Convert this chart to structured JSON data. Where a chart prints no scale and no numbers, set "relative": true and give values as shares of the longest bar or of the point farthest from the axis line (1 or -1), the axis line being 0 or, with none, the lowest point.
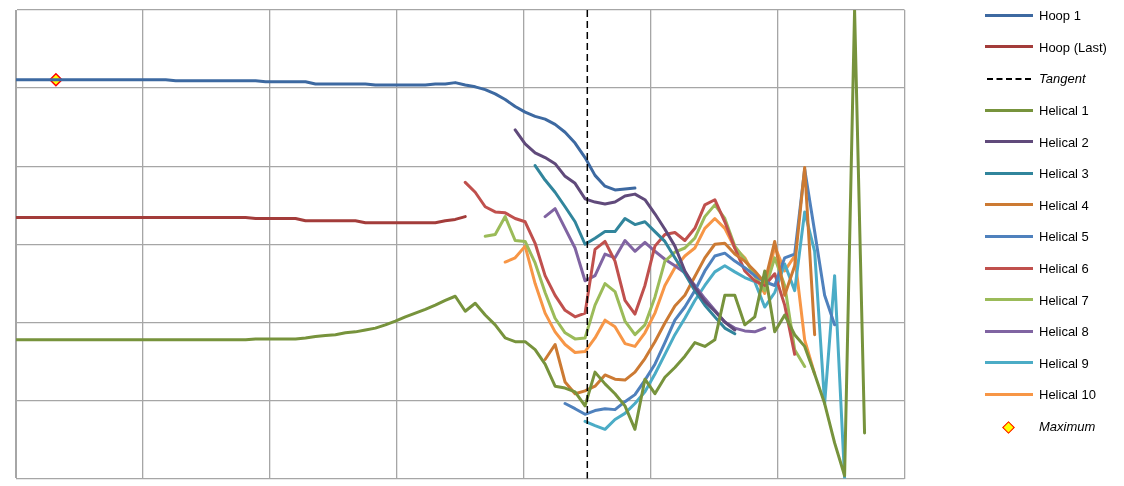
{
  "chart_data": {
    "type": "line",
    "relative": true,
    "grid": true,
    "legend": "right",
    "categories": [
      null,
      null,
      null,
      null,
      null,
      null,
      null,
      null,
      null,
      null,
      null,
      null,
      null,
      null,
      null,
      null,
      null,
      null,
      null,
      null,
      null,
      null,
      null,
      null,
      null,
      null,
      null,
      null,
      null,
      null,
      null,
      null,
      null,
      null,
      null,
      null,
      null,
      null,
      null,
      null,
      null,
      null,
      null,
      null,
      null,
      null,
      null,
      null,
      null,
      null,
      null,
      null,
      null,
      null,
      null,
      null,
      null,
      null,
      null,
      null,
      null,
      null,
      null,
      null,
      null,
      null,
      null,
      null,
      null,
      null,
      null,
      null,
      null,
      null,
      null,
      null,
      null,
      null,
      null,
      null,
      null,
      null,
      null,
      null,
      null,
      null,
      null,
      null,
      null,
      null
    ],
    "annotations": [
      "Tangent"
    ],
    "series": [
      {
        "name": "Hoop 1",
        "color": "#3d69a1",
        "values": [
          0.851,
          0.851,
          0.851,
          0.851,
          0.851,
          0.851,
          0.851,
          0.851,
          0.851,
          0.851,
          0.851,
          0.851,
          0.851,
          0.851,
          0.851,
          0.851,
          0.849,
          0.849,
          0.849,
          0.849,
          0.849,
          0.849,
          0.849,
          0.849,
          0.849,
          0.847,
          0.847,
          0.847,
          0.847,
          0.847,
          0.842,
          0.842,
          0.842,
          0.842,
          0.842,
          0.842,
          0.84,
          0.84,
          0.84,
          0.84,
          0.84,
          0.84,
          0.842,
          0.842,
          0.845,
          0.84,
          0.836,
          0.83,
          0.821,
          0.809,
          0.794,
          0.782,
          0.773,
          0.767,
          0.756,
          0.739,
          0.716,
          0.685,
          0.647,
          0.624,
          0.616,
          0.618,
          0.62,
          null,
          null,
          null,
          null,
          null,
          null,
          null,
          null,
          null,
          null,
          null,
          null,
          null,
          null,
          null,
          null,
          null,
          null,
          null,
          null,
          null,
          null,
          null,
          null,
          null,
          null,
          null
        ]
      },
      {
        "name": "Hoop (Last)",
        "color": "#a33c3a",
        "values": [
          0.557,
          0.557,
          0.557,
          0.557,
          0.557,
          0.557,
          0.557,
          0.557,
          0.557,
          0.557,
          0.557,
          0.557,
          0.557,
          0.557,
          0.557,
          0.557,
          0.557,
          0.557,
          0.557,
          0.557,
          0.557,
          0.557,
          0.557,
          0.557,
          0.555,
          0.555,
          0.555,
          0.555,
          0.555,
          0.55,
          0.55,
          0.55,
          0.55,
          0.55,
          0.55,
          0.546,
          0.546,
          0.546,
          0.546,
          0.546,
          0.546,
          0.546,
          0.546,
          0.55,
          0.553,
          0.559,
          null,
          null,
          null,
          null,
          null,
          null,
          null,
          null,
          null,
          null,
          null,
          null,
          null,
          null,
          null,
          null,
          null,
          null,
          null,
          null,
          null,
          null,
          null,
          null,
          null,
          null,
          null,
          null,
          null,
          null,
          null,
          null,
          null,
          null,
          null,
          null,
          null,
          null,
          null,
          null,
          null,
          null,
          null,
          null
        ]
      },
      {
        "name": "Helical 1",
        "color": "#77933c",
        "values": [
          0.296,
          0.296,
          0.296,
          0.296,
          0.296,
          0.296,
          0.296,
          0.296,
          0.296,
          0.296,
          0.296,
          0.296,
          0.296,
          0.296,
          0.296,
          0.296,
          0.296,
          0.296,
          0.296,
          0.296,
          0.296,
          0.296,
          0.296,
          0.296,
          0.298,
          0.298,
          0.298,
          0.298,
          0.298,
          0.3,
          0.303,
          0.305,
          0.307,
          0.311,
          0.313,
          0.317,
          0.321,
          0.328,
          0.336,
          0.345,
          0.353,
          0.361,
          0.37,
          0.38,
          0.389,
          0.357,
          0.374,
          0.349,
          0.328,
          0.3,
          0.292,
          0.292,
          0.275,
          0.244,
          0.197,
          0.193,
          0.185,
          0.155,
          0.227,
          0.202,
          0.181,
          0.155,
          0.105,
          0.212,
          0.181,
          0.216,
          0.237,
          0.261,
          0.29,
          0.282,
          0.296,
          0.391,
          0.391,
          0.328,
          0.345,
          0.443,
          0.313,
          0.349,
          0.307,
          0.282,
          0.223,
          0.16,
          0.076,
          0.006,
          1,
          0.097,
          null,
          null,
          null,
          null
        ]
      },
      {
        "name": "Helical 2",
        "color": "#604a7b",
        "values": [
          null,
          null,
          null,
          null,
          null,
          null,
          null,
          null,
          null,
          null,
          null,
          null,
          null,
          null,
          null,
          null,
          null,
          null,
          null,
          null,
          null,
          null,
          null,
          null,
          null,
          null,
          null,
          null,
          null,
          null,
          null,
          null,
          null,
          null,
          null,
          null,
          null,
          null,
          null,
          null,
          null,
          null,
          null,
          null,
          null,
          null,
          null,
          null,
          null,
          null,
          0.744,
          0.714,
          0.695,
          0.685,
          0.672,
          0.645,
          0.63,
          0.597,
          0.59,
          0.586,
          0.59,
          0.603,
          0.607,
          0.595,
          0.565,
          0.532,
          0.496,
          0.443,
          0.408,
          0.378,
          0.357,
          0.334,
          0.317,
          null,
          null,
          null,
          null,
          null,
          null,
          null,
          null,
          null,
          null,
          null,
          null,
          null,
          null,
          null,
          null,
          null
        ]
      },
      {
        "name": "Helical 3",
        "color": "#31859c",
        "values": [
          null,
          null,
          null,
          null,
          null,
          null,
          null,
          null,
          null,
          null,
          null,
          null,
          null,
          null,
          null,
          null,
          null,
          null,
          null,
          null,
          null,
          null,
          null,
          null,
          null,
          null,
          null,
          null,
          null,
          null,
          null,
          null,
          null,
          null,
          null,
          null,
          null,
          null,
          null,
          null,
          null,
          null,
          null,
          null,
          null,
          null,
          null,
          null,
          null,
          null,
          null,
          null,
          0.668,
          0.637,
          0.611,
          0.58,
          0.548,
          0.5,
          0.513,
          0.527,
          0.527,
          0.555,
          0.542,
          0.548,
          0.527,
          0.506,
          0.471,
          0.437,
          0.401,
          0.37,
          0.345,
          0.321,
          0.309,
          null,
          null,
          null,
          null,
          null,
          null,
          null,
          null,
          null,
          null,
          null,
          null,
          null,
          null,
          null,
          null,
          null
        ]
      },
      {
        "name": "Helical 4",
        "color": "#cc7a33",
        "values": [
          null,
          null,
          null,
          null,
          null,
          null,
          null,
          null,
          null,
          null,
          null,
          null,
          null,
          null,
          null,
          null,
          null,
          null,
          null,
          null,
          null,
          null,
          null,
          null,
          null,
          null,
          null,
          null,
          null,
          null,
          null,
          null,
          null,
          null,
          null,
          null,
          null,
          null,
          null,
          null,
          null,
          null,
          null,
          null,
          null,
          null,
          null,
          null,
          null,
          null,
          null,
          null,
          null,
          0.254,
          0.286,
          0.206,
          0.181,
          0.187,
          0.197,
          0.221,
          0.212,
          0.21,
          0.227,
          0.256,
          0.292,
          0.332,
          0.368,
          0.391,
          0.431,
          0.471,
          0.5,
          0.502,
          0.479,
          0.464,
          0.443,
          0.418,
          0.506,
          0.391,
          0.454,
          0.664,
          0.307,
          null,
          null,
          null,
          null,
          null,
          null,
          null,
          null,
          null
        ]
      },
      {
        "name": "Helical 5",
        "color": "#4f81bd",
        "values": [
          null,
          null,
          null,
          null,
          null,
          null,
          null,
          null,
          null,
          null,
          null,
          null,
          null,
          null,
          null,
          null,
          null,
          null,
          null,
          null,
          null,
          null,
          null,
          null,
          null,
          null,
          null,
          null,
          null,
          null,
          null,
          null,
          null,
          null,
          null,
          null,
          null,
          null,
          null,
          null,
          null,
          null,
          null,
          null,
          null,
          null,
          null,
          null,
          null,
          null,
          null,
          null,
          null,
          null,
          null,
          0.16,
          0.149,
          0.137,
          0.145,
          0.149,
          0.147,
          0.164,
          0.179,
          0.21,
          0.244,
          0.29,
          0.338,
          0.366,
          0.401,
          0.443,
          0.475,
          0.481,
          0.464,
          0.45,
          0.433,
          0.42,
          0.412,
          0.471,
          0.479,
          0.66,
          0.527,
          0.391,
          0.328,
          null,
          null,
          null,
          null,
          null,
          null,
          null
        ]
      },
      {
        "name": "Helical 6",
        "color": "#c0504d",
        "values": [
          null,
          null,
          null,
          null,
          null,
          null,
          null,
          null,
          null,
          null,
          null,
          null,
          null,
          null,
          null,
          null,
          null,
          null,
          null,
          null,
          null,
          null,
          null,
          null,
          null,
          null,
          null,
          null,
          null,
          null,
          null,
          null,
          null,
          null,
          null,
          null,
          null,
          null,
          null,
          null,
          null,
          null,
          null,
          null,
          null,
          0.632,
          0.611,
          0.58,
          0.569,
          0.567,
          0.555,
          0.548,
          0.502,
          0.433,
          0.391,
          0.359,
          0.345,
          0.353,
          0.489,
          0.506,
          0.464,
          0.38,
          0.351,
          0.412,
          0.496,
          0.521,
          0.525,
          0.508,
          0.534,
          0.584,
          0.595,
          0.548,
          0.492,
          0.443,
          0.422,
          0.412,
          0.437,
          0.37,
          0.265,
          null,
          null,
          null,
          null,
          null,
          null,
          null,
          null,
          null,
          null,
          null
        ]
      },
      {
        "name": "Helical 7",
        "color": "#9bbb59",
        "values": [
          null,
          null,
          null,
          null,
          null,
          null,
          null,
          null,
          null,
          null,
          null,
          null,
          null,
          null,
          null,
          null,
          null,
          null,
          null,
          null,
          null,
          null,
          null,
          null,
          null,
          null,
          null,
          null,
          null,
          null,
          null,
          null,
          null,
          null,
          null,
          null,
          null,
          null,
          null,
          null,
          null,
          null,
          null,
          null,
          null,
          null,
          null,
          0.517,
          0.521,
          0.559,
          0.508,
          0.506,
          0.46,
          0.397,
          0.342,
          0.311,
          0.298,
          0.3,
          0.37,
          0.416,
          0.399,
          0.336,
          0.307,
          0.328,
          0.387,
          0.464,
          0.483,
          0.492,
          0.513,
          0.559,
          0.584,
          0.555,
          0.496,
          0.468,
          0.433,
          0.401,
          0.471,
          0.412,
          0.275,
          0.239,
          null,
          null,
          null,
          null,
          null,
          null,
          null,
          null,
          null,
          null
        ]
      },
      {
        "name": "Helical 8",
        "color": "#8064a2",
        "values": [
          null,
          null,
          null,
          null,
          null,
          null,
          null,
          null,
          null,
          null,
          null,
          null,
          null,
          null,
          null,
          null,
          null,
          null,
          null,
          null,
          null,
          null,
          null,
          null,
          null,
          null,
          null,
          null,
          null,
          null,
          null,
          null,
          null,
          null,
          null,
          null,
          null,
          null,
          null,
          null,
          null,
          null,
          null,
          null,
          null,
          null,
          null,
          null,
          null,
          null,
          null,
          null,
          null,
          0.559,
          0.576,
          0.534,
          0.492,
          0.422,
          0.433,
          0.479,
          0.471,
          0.508,
          0.485,
          0.504,
          0.485,
          0.468,
          0.454,
          0.439,
          0.412,
          0.384,
          0.359,
          0.334,
          0.321,
          0.315,
          0.313,
          0.321,
          null,
          null,
          null,
          null,
          null,
          null,
          null,
          null,
          null,
          null,
          null,
          null,
          null,
          null
        ]
      },
      {
        "name": "Helical 9",
        "color": "#4bacc6",
        "values": [
          null,
          null,
          null,
          null,
          null,
          null,
          null,
          null,
          null,
          null,
          null,
          null,
          null,
          null,
          null,
          null,
          null,
          null,
          null,
          null,
          null,
          null,
          null,
          null,
          null,
          null,
          null,
          null,
          null,
          null,
          null,
          null,
          null,
          null,
          null,
          null,
          null,
          null,
          null,
          null,
          null,
          null,
          null,
          null,
          null,
          null,
          null,
          null,
          null,
          null,
          null,
          null,
          null,
          null,
          null,
          null,
          null,
          0.122,
          0.113,
          0.105,
          0.126,
          0.139,
          0.16,
          0.185,
          0.223,
          0.265,
          0.307,
          0.342,
          0.38,
          0.412,
          0.441,
          0.454,
          0.441,
          0.429,
          0.42,
          0.366,
          0.397,
          0.458,
          0.401,
          0.569,
          0.485,
          0.16,
          0.433,
          0,
          null,
          null,
          null,
          null,
          null,
          null
        ]
      },
      {
        "name": "Helical 10",
        "color": "#f79646",
        "values": [
          null,
          null,
          null,
          null,
          null,
          null,
          null,
          null,
          null,
          null,
          null,
          null,
          null,
          null,
          null,
          null,
          null,
          null,
          null,
          null,
          null,
          null,
          null,
          null,
          null,
          null,
          null,
          null,
          null,
          null,
          null,
          null,
          null,
          null,
          null,
          null,
          null,
          null,
          null,
          null,
          null,
          null,
          null,
          null,
          null,
          null,
          null,
          null,
          null,
          0.462,
          0.471,
          0.496,
          0.416,
          0.353,
          0.313,
          0.286,
          0.269,
          0.271,
          0.3,
          0.338,
          0.324,
          0.288,
          0.282,
          0.311,
          0.353,
          0.412,
          0.45,
          0.475,
          0.492,
          0.534,
          0.555,
          0.534,
          0.492,
          0.471,
          0.433,
          0.395,
          0.496,
          0.443,
          0.475,
          0.296,
          0.223,
          null,
          null,
          null,
          null,
          null,
          null,
          null,
          null,
          null
        ]
      },
      {
        "name": "Maximum",
        "marker": "diamond",
        "color": "#ffff00",
        "values": [
          null,
          null,
          null,
          null,
          0.851,
          null,
          null,
          null,
          null,
          null,
          null,
          null,
          null,
          null,
          null,
          null,
          null,
          null,
          null,
          null,
          null,
          null,
          null,
          null,
          null,
          null,
          null,
          null,
          null,
          null,
          null,
          null,
          null,
          null,
          null,
          null,
          null,
          null,
          null,
          null,
          null,
          null,
          null,
          null,
          null,
          null,
          null,
          null,
          null,
          null,
          null,
          null,
          null,
          null,
          null,
          null,
          null,
          null,
          null,
          null,
          null,
          null,
          null,
          null,
          null,
          null,
          null,
          null,
          null,
          null,
          null,
          null,
          null,
          null,
          null,
          null,
          null,
          null,
          null,
          null,
          null,
          null,
          null,
          null,
          null,
          null,
          null,
          null,
          null,
          null
        ]
      }
    ]
  }
}
